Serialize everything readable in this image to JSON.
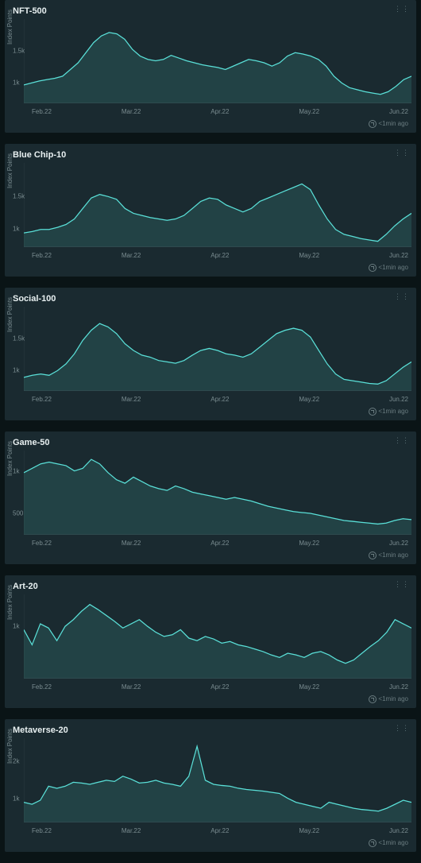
{
  "page_bg": "#0a1416",
  "card_bg": "#1a2a30",
  "line_color": "#5ae0d8",
  "area_color": "#3a8a85",
  "axis_color": "#3a4a50",
  "text_color": "#c8d4d6",
  "tick_color": "#7a8c90",
  "title_fontsize": 11,
  "tick_fontsize": 8,
  "ylabel": "Index Points",
  "xticks": [
    "Feb.22",
    "Mar.22",
    "Apr.22",
    "May.22",
    "Jun.22"
  ],
  "footer_text": "<1min ago",
  "charts": [
    {
      "title": "NFT-500",
      "yticks": [
        {
          "v": 1000,
          "label": "1k"
        },
        {
          "v": 1500,
          "label": "1.5k"
        }
      ],
      "ylim": [
        750,
        2000
      ],
      "values": [
        1020,
        1050,
        1080,
        1100,
        1120,
        1150,
        1250,
        1350,
        1500,
        1650,
        1750,
        1800,
        1780,
        1700,
        1550,
        1450,
        1400,
        1380,
        1400,
        1460,
        1420,
        1380,
        1350,
        1320,
        1300,
        1280,
        1250,
        1300,
        1350,
        1400,
        1380,
        1350,
        1300,
        1350,
        1450,
        1500,
        1480,
        1450,
        1400,
        1300,
        1150,
        1050,
        980,
        950,
        920,
        900,
        880,
        920,
        1000,
        1100,
        1150
      ]
    },
    {
      "title": "Blue Chip-10",
      "yticks": [
        {
          "v": 1000,
          "label": "1k"
        },
        {
          "v": 1500,
          "label": "1.5k"
        }
      ],
      "ylim": [
        800,
        2000
      ],
      "values": [
        1000,
        1020,
        1050,
        1050,
        1080,
        1120,
        1200,
        1350,
        1500,
        1550,
        1520,
        1480,
        1350,
        1280,
        1250,
        1220,
        1200,
        1180,
        1200,
        1250,
        1350,
        1450,
        1500,
        1480,
        1400,
        1350,
        1300,
        1350,
        1450,
        1500,
        1550,
        1600,
        1650,
        1700,
        1620,
        1400,
        1200,
        1050,
        980,
        950,
        920,
        900,
        880,
        980,
        1100,
        1200,
        1280
      ]
    },
    {
      "title": "Social-100",
      "yticks": [
        {
          "v": 1000,
          "label": "1k"
        },
        {
          "v": 1500,
          "label": "1.5k"
        }
      ],
      "ylim": [
        750,
        2000
      ],
      "values": [
        950,
        980,
        1000,
        980,
        1050,
        1150,
        1300,
        1500,
        1650,
        1750,
        1700,
        1600,
        1450,
        1350,
        1280,
        1250,
        1200,
        1180,
        1160,
        1200,
        1280,
        1350,
        1380,
        1350,
        1300,
        1280,
        1250,
        1300,
        1400,
        1500,
        1600,
        1650,
        1680,
        1650,
        1550,
        1350,
        1150,
        1000,
        920,
        900,
        880,
        860,
        850,
        900,
        1000,
        1100,
        1180
      ]
    },
    {
      "title": "Game-50",
      "yticks": [
        {
          "v": 500,
          "label": "500"
        },
        {
          "v": 1000,
          "label": "1k"
        }
      ],
      "ylim": [
        300,
        1250
      ],
      "values": [
        1000,
        1050,
        1100,
        1120,
        1100,
        1080,
        1020,
        1050,
        1150,
        1100,
        1000,
        920,
        880,
        950,
        900,
        850,
        820,
        800,
        850,
        820,
        780,
        760,
        740,
        720,
        700,
        720,
        700,
        680,
        650,
        620,
        600,
        580,
        560,
        550,
        540,
        520,
        500,
        480,
        460,
        450,
        440,
        430,
        420,
        430,
        460,
        480,
        470
      ]
    },
    {
      "title": "Art-20",
      "yticks": [
        {
          "v": 1000,
          "label": "1k"
        }
      ],
      "ylim": [
        400,
        1400
      ],
      "values": [
        980,
        800,
        1050,
        1000,
        850,
        1020,
        1100,
        1200,
        1280,
        1220,
        1150,
        1080,
        1000,
        1050,
        1100,
        1020,
        950,
        900,
        920,
        980,
        880,
        850,
        900,
        870,
        820,
        840,
        800,
        780,
        750,
        720,
        680,
        650,
        700,
        680,
        650,
        700,
        720,
        680,
        620,
        580,
        620,
        700,
        780,
        850,
        950,
        1100,
        1050,
        1000
      ]
    },
    {
      "title": "Metaverse-20",
      "yticks": [
        {
          "v": 1000,
          "label": "1k"
        },
        {
          "v": 2000,
          "label": "2k"
        }
      ],
      "ylim": [
        500,
        2600
      ],
      "values": [
        1000,
        950,
        1050,
        1400,
        1350,
        1400,
        1500,
        1480,
        1450,
        1500,
        1550,
        1520,
        1650,
        1580,
        1480,
        1500,
        1550,
        1480,
        1450,
        1400,
        1650,
        2400,
        1550,
        1450,
        1420,
        1400,
        1350,
        1320,
        1300,
        1280,
        1250,
        1220,
        1100,
        1000,
        950,
        900,
        850,
        1000,
        950,
        900,
        850,
        820,
        800,
        780,
        850,
        950,
        1050,
        1000
      ]
    }
  ]
}
